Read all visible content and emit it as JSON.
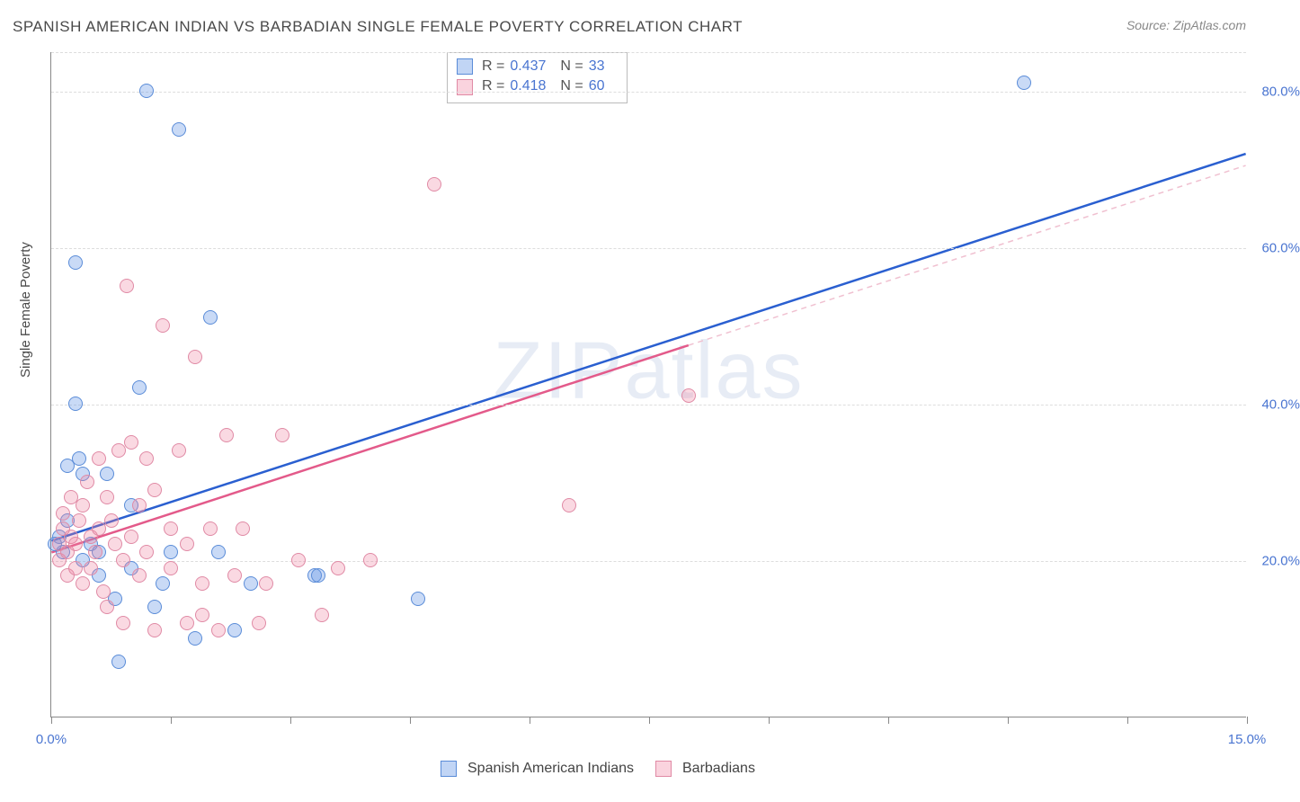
{
  "title": "SPANISH AMERICAN INDIAN VS BARBADIAN SINGLE FEMALE POVERTY CORRELATION CHART",
  "source": "Source: ZipAtlas.com",
  "watermark": "ZIPatlas",
  "y_axis_label": "Single Female Poverty",
  "chart": {
    "type": "scatter",
    "xlim": [
      0,
      15
    ],
    "ylim": [
      0,
      85
    ],
    "background_color": "#ffffff",
    "grid_color": "#dddddd",
    "grid_dash": true,
    "axis_line_color": "#888888",
    "x_ticks": [
      0,
      1.5,
      3,
      4.5,
      6,
      7.5,
      9,
      10.5,
      12,
      13.5,
      15
    ],
    "x_tick_labels": {
      "0": "0.0%",
      "15": "15.0%"
    },
    "y_grid": [
      20,
      40,
      60,
      80,
      85
    ],
    "y_tick_labels": {
      "20": "20.0%",
      "40": "40.0%",
      "60": "60.0%",
      "80": "80.0%"
    },
    "tick_label_color": "#4a75d1",
    "tick_label_fontsize": 15,
    "point_radius": 8,
    "series": [
      {
        "name": "Spanish American Indians",
        "color_fill": "rgba(100,150,230,0.35)",
        "color_stroke": "#5a8cd8",
        "class": "blue",
        "R": "0.437",
        "N": "33",
        "trend": {
          "x1": 0,
          "y1": 22.5,
          "x2": 15,
          "y2": 72,
          "color": "#2a5fd0",
          "width": 2.5
        },
        "trend_dash": {
          "x1": 0,
          "y1": 22.5,
          "x2": 15,
          "y2": 72,
          "color": "#c0c8e0",
          "width": 1.5
        },
        "points": [
          [
            0.1,
            23
          ],
          [
            0.15,
            21
          ],
          [
            0.2,
            25
          ],
          [
            0.2,
            32
          ],
          [
            0.3,
            58
          ],
          [
            0.3,
            40
          ],
          [
            0.35,
            33
          ],
          [
            0.4,
            20
          ],
          [
            0.4,
            31
          ],
          [
            0.5,
            22
          ],
          [
            0.6,
            21
          ],
          [
            0.6,
            18
          ],
          [
            0.7,
            31
          ],
          [
            0.8,
            15
          ],
          [
            0.85,
            7
          ],
          [
            1.0,
            27
          ],
          [
            1.0,
            19
          ],
          [
            1.1,
            42
          ],
          [
            1.2,
            80
          ],
          [
            1.3,
            14
          ],
          [
            1.4,
            17
          ],
          [
            1.5,
            21
          ],
          [
            1.6,
            75
          ],
          [
            1.8,
            10
          ],
          [
            2.0,
            51
          ],
          [
            2.1,
            21
          ],
          [
            2.3,
            11
          ],
          [
            2.5,
            17
          ],
          [
            3.3,
            18
          ],
          [
            3.35,
            18
          ],
          [
            4.6,
            15
          ],
          [
            12.2,
            81
          ],
          [
            0.05,
            22
          ]
        ]
      },
      {
        "name": "Barbadians",
        "color_fill": "rgba(240,130,160,0.30)",
        "color_stroke": "#e08aa5",
        "class": "pink",
        "R": "0.418",
        "N": "60",
        "trend": {
          "x1": 0,
          "y1": 21,
          "x2": 8.0,
          "y2": 47.5,
          "color": "#e35a8a",
          "width": 2.5
        },
        "trend_dash": {
          "x1": 8.0,
          "y1": 47.5,
          "x2": 15,
          "y2": 70.5,
          "color": "#f0c0d0",
          "width": 1.5
        },
        "points": [
          [
            0.1,
            22
          ],
          [
            0.1,
            20
          ],
          [
            0.15,
            24
          ],
          [
            0.15,
            26
          ],
          [
            0.2,
            18
          ],
          [
            0.2,
            21
          ],
          [
            0.25,
            23
          ],
          [
            0.25,
            28
          ],
          [
            0.3,
            19
          ],
          [
            0.3,
            22
          ],
          [
            0.35,
            25
          ],
          [
            0.4,
            17
          ],
          [
            0.4,
            27
          ],
          [
            0.45,
            30
          ],
          [
            0.5,
            19
          ],
          [
            0.5,
            23
          ],
          [
            0.55,
            21
          ],
          [
            0.6,
            24
          ],
          [
            0.6,
            33
          ],
          [
            0.65,
            16
          ],
          [
            0.7,
            14
          ],
          [
            0.7,
            28
          ],
          [
            0.75,
            25
          ],
          [
            0.8,
            22
          ],
          [
            0.85,
            34
          ],
          [
            0.9,
            20
          ],
          [
            0.9,
            12
          ],
          [
            0.95,
            55
          ],
          [
            1.0,
            23
          ],
          [
            1.0,
            35
          ],
          [
            1.1,
            18
          ],
          [
            1.1,
            27
          ],
          [
            1.2,
            21
          ],
          [
            1.2,
            33
          ],
          [
            1.3,
            11
          ],
          [
            1.3,
            29
          ],
          [
            1.4,
            50
          ],
          [
            1.5,
            19
          ],
          [
            1.5,
            24
          ],
          [
            1.6,
            34
          ],
          [
            1.7,
            12
          ],
          [
            1.7,
            22
          ],
          [
            1.8,
            46
          ],
          [
            1.9,
            17
          ],
          [
            1.9,
            13
          ],
          [
            2.0,
            24
          ],
          [
            2.1,
            11
          ],
          [
            2.2,
            36
          ],
          [
            2.3,
            18
          ],
          [
            2.4,
            24
          ],
          [
            2.6,
            12
          ],
          [
            2.7,
            17
          ],
          [
            2.9,
            36
          ],
          [
            3.1,
            20
          ],
          [
            3.4,
            13
          ],
          [
            3.6,
            19
          ],
          [
            4.0,
            20
          ],
          [
            4.8,
            68
          ],
          [
            6.5,
            27
          ],
          [
            8.0,
            41
          ]
        ]
      }
    ],
    "legend_bottom": [
      {
        "class": "blue",
        "label": "Spanish American Indians"
      },
      {
        "class": "pink",
        "label": "Barbadians"
      }
    ]
  }
}
